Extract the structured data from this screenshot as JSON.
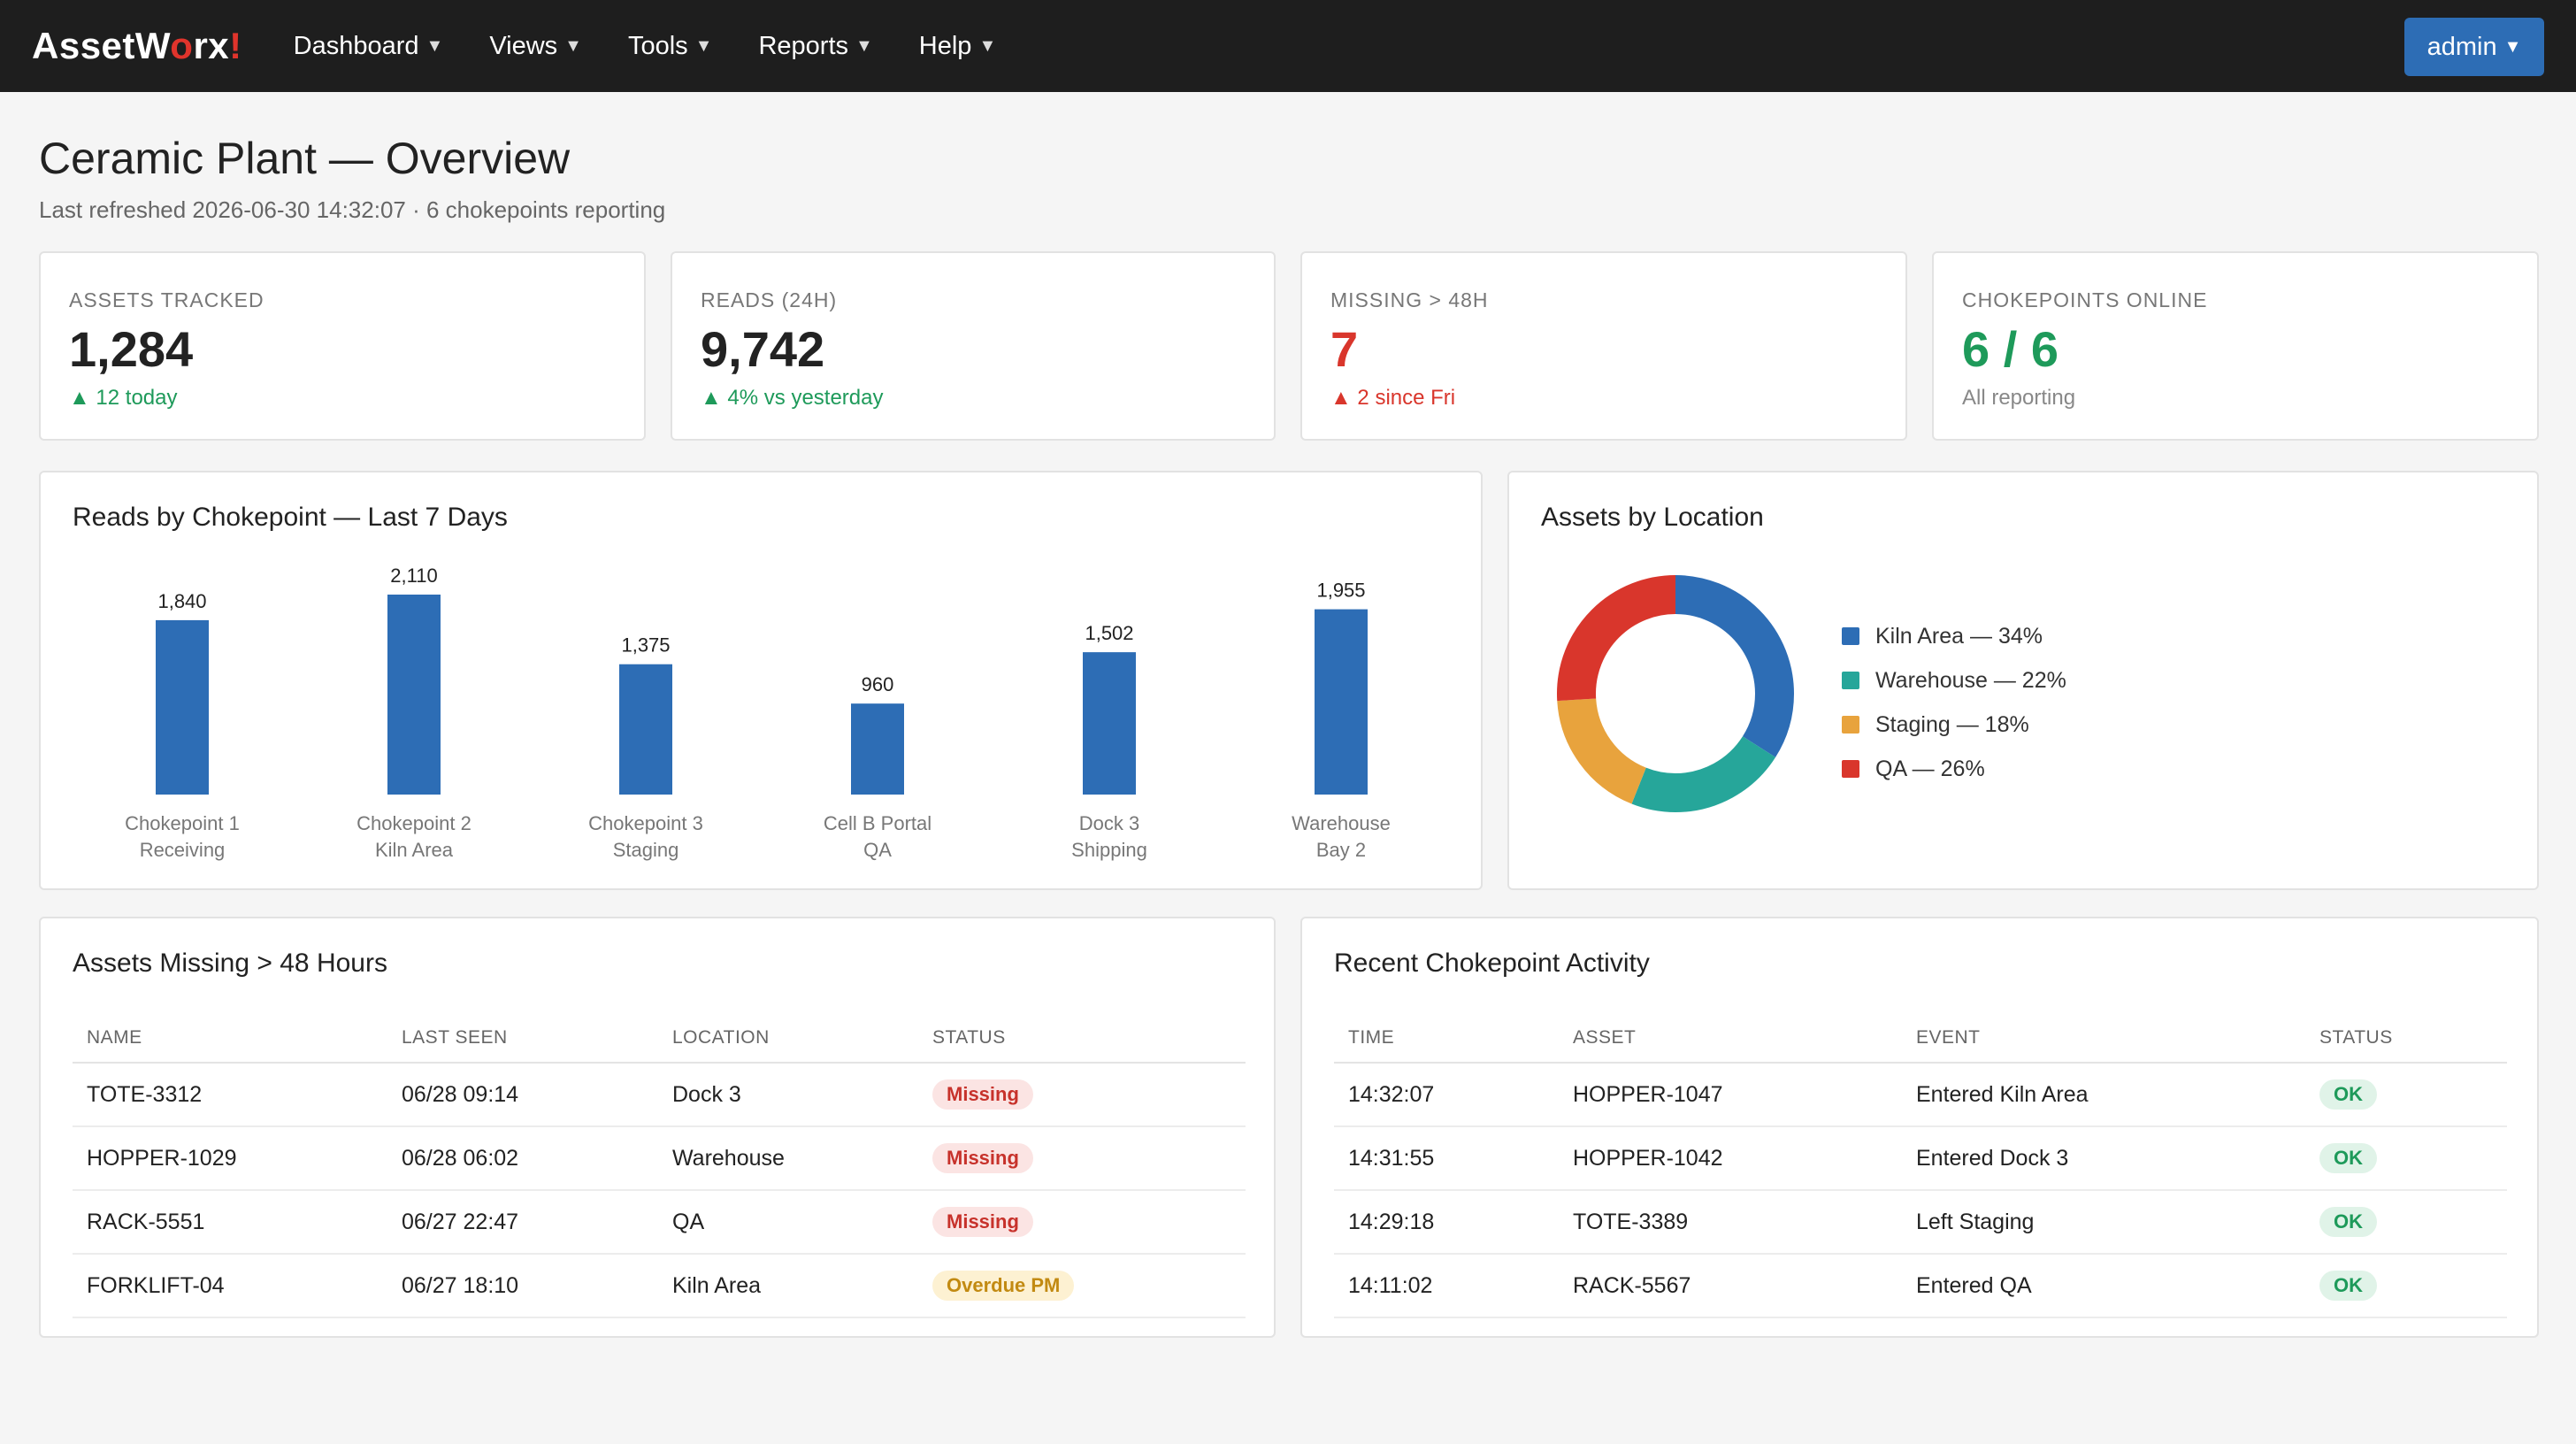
{
  "nav": {
    "brand_pre": "AssetW",
    "brand_o": "o",
    "brand_post": "rx",
    "brand_bang": "!",
    "items": [
      "Dashboard",
      "Views",
      "Tools",
      "Reports",
      "Help"
    ],
    "user": "admin"
  },
  "header": {
    "title": "Ceramic Plant — Overview",
    "subtitle": "Last refreshed 2026-06-30 14:32:07 · 6 chokepoints reporting"
  },
  "kpis": [
    {
      "label": "ASSETS TRACKED",
      "value": "1,284",
      "note": "▲ 12 today",
      "tone": "green"
    },
    {
      "label": "READS (24H)",
      "value": "9,742",
      "note": "▲ 4% vs yesterday",
      "tone": "green"
    },
    {
      "label": "MISSING > 48H",
      "value": "7",
      "note": "▲ 2 since Fri",
      "tone": "red"
    },
    {
      "label": "CHOKEPOINTS ONLINE",
      "value": "6 / 6",
      "note": "All reporting",
      "tone": "grey"
    }
  ],
  "colors": {
    "accent": "#2d6db5",
    "bar": "#2d6db5",
    "kiln": "#2d6db5",
    "warehouse": "#26a69a",
    "staging": "#e8a33d",
    "qa": "#d9362c"
  },
  "chart_data": [
    {
      "type": "bar",
      "title": "Reads by Chokepoint — Last 7 Days",
      "categories": [
        [
          "Chokepoint 1",
          "Receiving"
        ],
        [
          "Chokepoint 2",
          "Kiln Area"
        ],
        [
          "Chokepoint 3",
          "Staging"
        ],
        [
          "Cell B Portal",
          "QA"
        ],
        [
          "Dock 3",
          "Shipping"
        ],
        [
          "Warehouse",
          "Bay 2"
        ]
      ],
      "values": [
        1840,
        2110,
        1375,
        960,
        1502,
        1955
      ],
      "value_labels": [
        "1,840",
        "2,110",
        "1,375",
        "960",
        "1,502",
        "1,955"
      ]
    },
    {
      "type": "pie",
      "title": "Assets by Location",
      "slices": [
        {
          "label": "Kiln Area — 34%",
          "value": 34,
          "color": "#2d6db5"
        },
        {
          "label": "Warehouse — 22%",
          "value": 22,
          "color": "#26a69a"
        },
        {
          "label": "Staging — 18%",
          "value": 18,
          "color": "#e8a33d"
        },
        {
          "label": "QA — 26%",
          "value": 26,
          "color": "#d9362c"
        }
      ]
    }
  ],
  "missing": {
    "title": "Assets Missing > 48 Hours",
    "columns": [
      "NAME",
      "LAST SEEN",
      "LOCATION",
      "STATUS"
    ],
    "rows": [
      {
        "name": "TOTE-3312",
        "seen": "06/28 09:14",
        "location": "Dock 3",
        "status": "Missing",
        "kind": "missing"
      },
      {
        "name": "HOPPER-1029",
        "seen": "06/28 06:02",
        "location": "Warehouse",
        "status": "Missing",
        "kind": "missing"
      },
      {
        "name": "RACK-5551",
        "seen": "06/27 22:47",
        "location": "QA",
        "status": "Missing",
        "kind": "missing"
      },
      {
        "name": "FORKLIFT-04",
        "seen": "06/27 18:10",
        "location": "Kiln Area",
        "status": "Overdue PM",
        "kind": "overdue"
      }
    ]
  },
  "activity": {
    "title": "Recent Chokepoint Activity",
    "columns": [
      "TIME",
      "ASSET",
      "EVENT",
      "STATUS"
    ],
    "rows": [
      {
        "time": "14:32:07",
        "asset": "HOPPER-1047",
        "event": "Entered Kiln Area",
        "status": "OK"
      },
      {
        "time": "14:31:55",
        "asset": "HOPPER-1042",
        "event": "Entered Dock 3",
        "status": "OK"
      },
      {
        "time": "14:29:18",
        "asset": "TOTE-3389",
        "event": "Left Staging",
        "status": "OK"
      },
      {
        "time": "14:11:02",
        "asset": "RACK-5567",
        "event": "Entered QA",
        "status": "OK"
      }
    ]
  }
}
